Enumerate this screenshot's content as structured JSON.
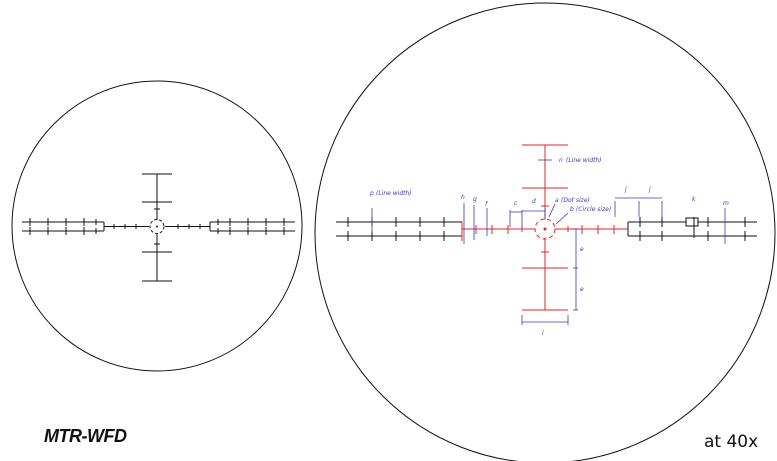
{
  "reticle_name": "MTR-WFD",
  "magnification_note": "at 40x",
  "labels": {
    "n": "n",
    "n_desc": "(Line width)",
    "p": "p",
    "p_desc": "(Line width)",
    "h": "h",
    "g": "g",
    "f": "f",
    "c": "c",
    "d": "d",
    "a": "a",
    "a_desc": "(Dot size)",
    "b": "b",
    "b_desc": "(Circle size)",
    "j1": "j",
    "j2": "j",
    "k": "k",
    "m": "m",
    "e1": "e",
    "e2": "e",
    "i": "i"
  },
  "colors": {
    "outline": "#111111",
    "reticle_black": "#111111",
    "reticle_red": "#e3262b",
    "dimension_blue": "#3b3bb0"
  }
}
